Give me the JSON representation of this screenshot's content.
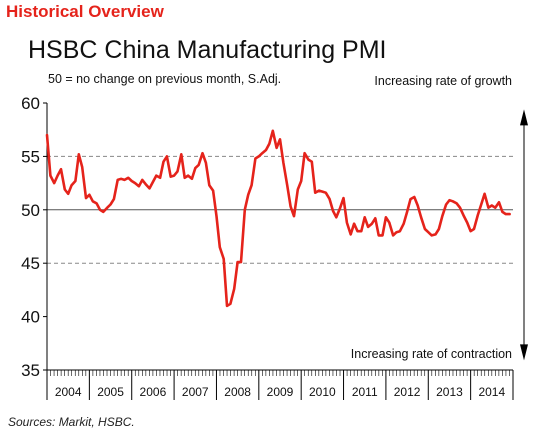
{
  "header": {
    "title": "Historical Overview"
  },
  "footer": {
    "source": "Sources: Markit, HSBC."
  },
  "colors": {
    "header": "#e5231b",
    "line": "#e5231b",
    "axis": "#000000",
    "grid": "#888888"
  },
  "chart_data": {
    "type": "line",
    "title": "HSBC China Manufacturing PMI",
    "subtitle": "50 = no change on previous month, S.Adj.",
    "annotations": {
      "top_right": "Increasing rate of growth",
      "bottom_right": "Increasing rate of contraction"
    },
    "ylim": [
      35,
      60
    ],
    "yticks": [
      35,
      40,
      45,
      50,
      55,
      60
    ],
    "gridlines": [
      45,
      50,
      55
    ],
    "reference_line": 50,
    "xlim": [
      2004.0,
      2014.92
    ],
    "xtick_labels": [
      "2004",
      "2005",
      "2006",
      "2007",
      "2008",
      "2009",
      "2010",
      "2011",
      "2012",
      "2013",
      "2014"
    ],
    "grid": true,
    "series": [
      {
        "x": [
          2004.0,
          2004.08,
          2004.17,
          2004.25,
          2004.33,
          2004.42,
          2004.5,
          2004.58,
          2004.67,
          2004.75,
          2004.83,
          2004.92,
          2005.0,
          2005.08,
          2005.17,
          2005.25,
          2005.33,
          2005.42,
          2005.5,
          2005.58,
          2005.67,
          2005.75,
          2005.83,
          2005.92,
          2006.0,
          2006.08,
          2006.17,
          2006.25,
          2006.33,
          2006.42,
          2006.5,
          2006.58,
          2006.67,
          2006.75,
          2006.83,
          2006.92,
          2007.0,
          2007.08,
          2007.17,
          2007.25,
          2007.33,
          2007.42,
          2007.5,
          2007.58,
          2007.67,
          2007.75,
          2007.83,
          2007.92,
          2008.0,
          2008.08,
          2008.17,
          2008.25,
          2008.33,
          2008.42,
          2008.5,
          2008.58,
          2008.67,
          2008.75,
          2008.83,
          2008.92,
          2009.0,
          2009.08,
          2009.17,
          2009.25,
          2009.33,
          2009.42,
          2009.5,
          2009.58,
          2009.67,
          2009.75,
          2009.83,
          2009.92,
          2010.0,
          2010.08,
          2010.17,
          2010.25,
          2010.33,
          2010.42,
          2010.5,
          2010.58,
          2010.67,
          2010.75,
          2010.83,
          2010.92,
          2011.0,
          2011.08,
          2011.17,
          2011.25,
          2011.33,
          2011.42,
          2011.5,
          2011.58,
          2011.67,
          2011.75,
          2011.83,
          2011.92,
          2012.0,
          2012.08,
          2012.17,
          2012.25,
          2012.33,
          2012.42,
          2012.5,
          2012.58,
          2012.67,
          2012.75,
          2012.83,
          2012.92,
          2013.0,
          2013.08,
          2013.17,
          2013.25,
          2013.33,
          2013.42,
          2013.5,
          2013.58,
          2013.67,
          2013.75,
          2013.83,
          2013.92,
          2014.0,
          2014.08,
          2014.17,
          2014.25,
          2014.33,
          2014.42,
          2014.5,
          2014.58,
          2014.67,
          2014.75,
          2014.83,
          2014.92
        ],
        "values": [
          57.0,
          53.2,
          52.5,
          53.2,
          53.8,
          51.9,
          51.5,
          52.3,
          52.7,
          55.2,
          54.0,
          51.1,
          51.4,
          50.8,
          50.6,
          50.0,
          49.8,
          50.2,
          50.5,
          51.0,
          52.8,
          52.9,
          52.8,
          53.0,
          52.7,
          52.5,
          52.2,
          52.8,
          52.4,
          52.0,
          52.6,
          53.2,
          53.0,
          54.5,
          55.0,
          53.1,
          53.2,
          53.6,
          55.2,
          53.0,
          53.2,
          52.9,
          53.9,
          54.2,
          55.3,
          54.4,
          52.3,
          51.8,
          49.4,
          46.5,
          45.4,
          41.0,
          41.2,
          42.6,
          45.1,
          45.1,
          50.0,
          51.4,
          52.3,
          54.8,
          55.0,
          55.3,
          55.6,
          56.2,
          57.4,
          55.8,
          56.6,
          54.4,
          52.3,
          50.3,
          49.4,
          51.9,
          52.7,
          55.3,
          54.7,
          54.5,
          51.6,
          51.8,
          51.7,
          51.6,
          51.0,
          49.9,
          49.3,
          50.2,
          51.1,
          48.8,
          47.7,
          48.7,
          48.0,
          48.0,
          49.3,
          48.4,
          48.7,
          49.2,
          47.6,
          47.6,
          49.3,
          48.8,
          47.6,
          47.9,
          48.0,
          48.7,
          49.8,
          51.0,
          51.2,
          50.4,
          49.3,
          48.2,
          47.9,
          47.6,
          47.7,
          48.2,
          49.4,
          50.5,
          50.9,
          50.8,
          50.6,
          50.2,
          49.5,
          48.8,
          48.0,
          48.2,
          49.5,
          50.5,
          51.5,
          50.2,
          50.4,
          50.2,
          50.7,
          49.8,
          49.6,
          49.6
        ]
      }
    ]
  }
}
